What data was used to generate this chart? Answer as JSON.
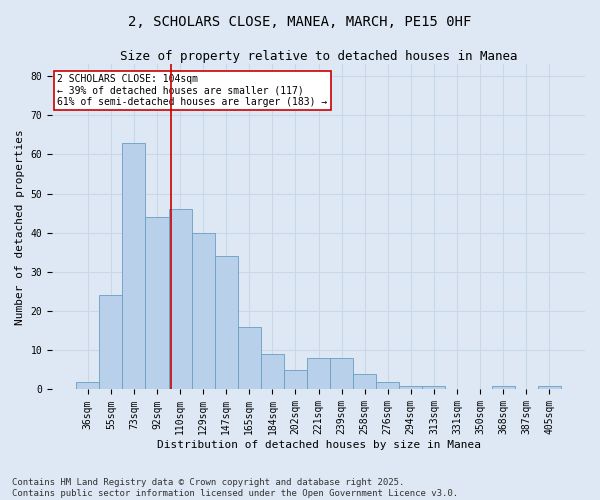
{
  "title": "2, SCHOLARS CLOSE, MANEA, MARCH, PE15 0HF",
  "subtitle": "Size of property relative to detached houses in Manea",
  "xlabel": "Distribution of detached houses by size in Manea",
  "ylabel": "Number of detached properties",
  "categories": [
    "36sqm",
    "55sqm",
    "73sqm",
    "92sqm",
    "110sqm",
    "129sqm",
    "147sqm",
    "165sqm",
    "184sqm",
    "202sqm",
    "221sqm",
    "239sqm",
    "258sqm",
    "276sqm",
    "294sqm",
    "313sqm",
    "331sqm",
    "350sqm",
    "368sqm",
    "387sqm",
    "405sqm"
  ],
  "values": [
    2,
    24,
    63,
    44,
    46,
    40,
    34,
    16,
    9,
    5,
    8,
    8,
    4,
    2,
    1,
    1,
    0,
    0,
    1,
    0,
    1
  ],
  "bar_color": "#b8d0ea",
  "bar_edge_color": "#6a9ec0",
  "grid_color": "#c8d8e8",
  "background_color": "#dde8f4",
  "vline_x": 3.62,
  "vline_color": "#cc0000",
  "annotation_text": "2 SCHOLARS CLOSE: 104sqm\n← 39% of detached houses are smaller (117)\n61% of semi-detached houses are larger (183) →",
  "annotation_box_color": "#ffffff",
  "annotation_box_edge": "#cc0000",
  "ylim": [
    0,
    83
  ],
  "yticks": [
    0,
    10,
    20,
    30,
    40,
    50,
    60,
    70,
    80
  ],
  "footer_line1": "Contains HM Land Registry data © Crown copyright and database right 2025.",
  "footer_line2": "Contains public sector information licensed under the Open Government Licence v3.0.",
  "title_fontsize": 10,
  "subtitle_fontsize": 9,
  "axis_label_fontsize": 8,
  "tick_fontsize": 7,
  "annotation_fontsize": 7,
  "footer_fontsize": 6.5
}
